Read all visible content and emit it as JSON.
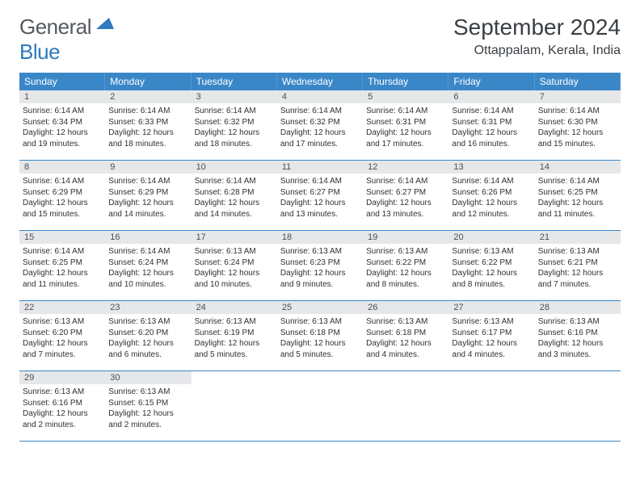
{
  "logo": {
    "word1": "General",
    "word2": "Blue"
  },
  "title": "September 2024",
  "subtitle": "Ottappalam, Kerala, India",
  "colors": {
    "header_bg": "#3a87c8",
    "header_text": "#ffffff",
    "daynum_bg": "#e6e7e8",
    "week_border": "#3a87c8",
    "body_text": "#2d3136",
    "title_text": "#3a3f44",
    "logo_gray": "#555a60",
    "logo_blue": "#2f79bf"
  },
  "dow": [
    "Sunday",
    "Monday",
    "Tuesday",
    "Wednesday",
    "Thursday",
    "Friday",
    "Saturday"
  ],
  "weeks": [
    [
      {
        "n": "1",
        "sr": "Sunrise: 6:14 AM",
        "ss": "Sunset: 6:34 PM",
        "d1": "Daylight: 12 hours",
        "d2": "and 19 minutes."
      },
      {
        "n": "2",
        "sr": "Sunrise: 6:14 AM",
        "ss": "Sunset: 6:33 PM",
        "d1": "Daylight: 12 hours",
        "d2": "and 18 minutes."
      },
      {
        "n": "3",
        "sr": "Sunrise: 6:14 AM",
        "ss": "Sunset: 6:32 PM",
        "d1": "Daylight: 12 hours",
        "d2": "and 18 minutes."
      },
      {
        "n": "4",
        "sr": "Sunrise: 6:14 AM",
        "ss": "Sunset: 6:32 PM",
        "d1": "Daylight: 12 hours",
        "d2": "and 17 minutes."
      },
      {
        "n": "5",
        "sr": "Sunrise: 6:14 AM",
        "ss": "Sunset: 6:31 PM",
        "d1": "Daylight: 12 hours",
        "d2": "and 17 minutes."
      },
      {
        "n": "6",
        "sr": "Sunrise: 6:14 AM",
        "ss": "Sunset: 6:31 PM",
        "d1": "Daylight: 12 hours",
        "d2": "and 16 minutes."
      },
      {
        "n": "7",
        "sr": "Sunrise: 6:14 AM",
        "ss": "Sunset: 6:30 PM",
        "d1": "Daylight: 12 hours",
        "d2": "and 15 minutes."
      }
    ],
    [
      {
        "n": "8",
        "sr": "Sunrise: 6:14 AM",
        "ss": "Sunset: 6:29 PM",
        "d1": "Daylight: 12 hours",
        "d2": "and 15 minutes."
      },
      {
        "n": "9",
        "sr": "Sunrise: 6:14 AM",
        "ss": "Sunset: 6:29 PM",
        "d1": "Daylight: 12 hours",
        "d2": "and 14 minutes."
      },
      {
        "n": "10",
        "sr": "Sunrise: 6:14 AM",
        "ss": "Sunset: 6:28 PM",
        "d1": "Daylight: 12 hours",
        "d2": "and 14 minutes."
      },
      {
        "n": "11",
        "sr": "Sunrise: 6:14 AM",
        "ss": "Sunset: 6:27 PM",
        "d1": "Daylight: 12 hours",
        "d2": "and 13 minutes."
      },
      {
        "n": "12",
        "sr": "Sunrise: 6:14 AM",
        "ss": "Sunset: 6:27 PM",
        "d1": "Daylight: 12 hours",
        "d2": "and 13 minutes."
      },
      {
        "n": "13",
        "sr": "Sunrise: 6:14 AM",
        "ss": "Sunset: 6:26 PM",
        "d1": "Daylight: 12 hours",
        "d2": "and 12 minutes."
      },
      {
        "n": "14",
        "sr": "Sunrise: 6:14 AM",
        "ss": "Sunset: 6:25 PM",
        "d1": "Daylight: 12 hours",
        "d2": "and 11 minutes."
      }
    ],
    [
      {
        "n": "15",
        "sr": "Sunrise: 6:14 AM",
        "ss": "Sunset: 6:25 PM",
        "d1": "Daylight: 12 hours",
        "d2": "and 11 minutes."
      },
      {
        "n": "16",
        "sr": "Sunrise: 6:14 AM",
        "ss": "Sunset: 6:24 PM",
        "d1": "Daylight: 12 hours",
        "d2": "and 10 minutes."
      },
      {
        "n": "17",
        "sr": "Sunrise: 6:13 AM",
        "ss": "Sunset: 6:24 PM",
        "d1": "Daylight: 12 hours",
        "d2": "and 10 minutes."
      },
      {
        "n": "18",
        "sr": "Sunrise: 6:13 AM",
        "ss": "Sunset: 6:23 PM",
        "d1": "Daylight: 12 hours",
        "d2": "and 9 minutes."
      },
      {
        "n": "19",
        "sr": "Sunrise: 6:13 AM",
        "ss": "Sunset: 6:22 PM",
        "d1": "Daylight: 12 hours",
        "d2": "and 8 minutes."
      },
      {
        "n": "20",
        "sr": "Sunrise: 6:13 AM",
        "ss": "Sunset: 6:22 PM",
        "d1": "Daylight: 12 hours",
        "d2": "and 8 minutes."
      },
      {
        "n": "21",
        "sr": "Sunrise: 6:13 AM",
        "ss": "Sunset: 6:21 PM",
        "d1": "Daylight: 12 hours",
        "d2": "and 7 minutes."
      }
    ],
    [
      {
        "n": "22",
        "sr": "Sunrise: 6:13 AM",
        "ss": "Sunset: 6:20 PM",
        "d1": "Daylight: 12 hours",
        "d2": "and 7 minutes."
      },
      {
        "n": "23",
        "sr": "Sunrise: 6:13 AM",
        "ss": "Sunset: 6:20 PM",
        "d1": "Daylight: 12 hours",
        "d2": "and 6 minutes."
      },
      {
        "n": "24",
        "sr": "Sunrise: 6:13 AM",
        "ss": "Sunset: 6:19 PM",
        "d1": "Daylight: 12 hours",
        "d2": "and 5 minutes."
      },
      {
        "n": "25",
        "sr": "Sunrise: 6:13 AM",
        "ss": "Sunset: 6:18 PM",
        "d1": "Daylight: 12 hours",
        "d2": "and 5 minutes."
      },
      {
        "n": "26",
        "sr": "Sunrise: 6:13 AM",
        "ss": "Sunset: 6:18 PM",
        "d1": "Daylight: 12 hours",
        "d2": "and 4 minutes."
      },
      {
        "n": "27",
        "sr": "Sunrise: 6:13 AM",
        "ss": "Sunset: 6:17 PM",
        "d1": "Daylight: 12 hours",
        "d2": "and 4 minutes."
      },
      {
        "n": "28",
        "sr": "Sunrise: 6:13 AM",
        "ss": "Sunset: 6:16 PM",
        "d1": "Daylight: 12 hours",
        "d2": "and 3 minutes."
      }
    ],
    [
      {
        "n": "29",
        "sr": "Sunrise: 6:13 AM",
        "ss": "Sunset: 6:16 PM",
        "d1": "Daylight: 12 hours",
        "d2": "and 2 minutes."
      },
      {
        "n": "30",
        "sr": "Sunrise: 6:13 AM",
        "ss": "Sunset: 6:15 PM",
        "d1": "Daylight: 12 hours",
        "d2": "and 2 minutes."
      },
      null,
      null,
      null,
      null,
      null
    ]
  ]
}
